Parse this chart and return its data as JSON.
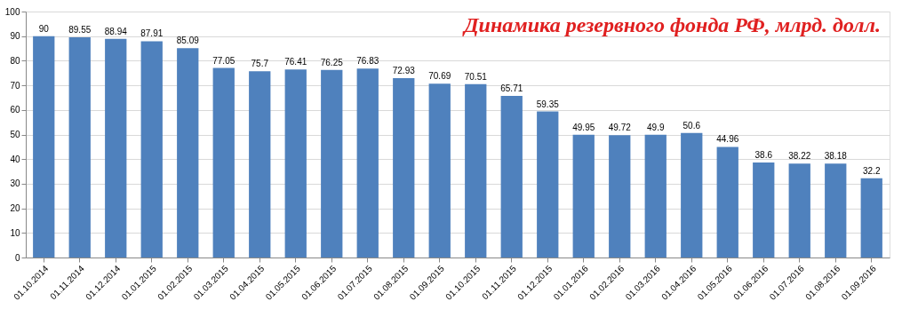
{
  "chart_data": {
    "type": "bar",
    "title": "Динамика резервного фонда РФ, млрд. долл.",
    "categories": [
      "01.10.2014",
      "01.11.2014",
      "01.12.2014",
      "01.01.2015",
      "01.02.2015",
      "01.03.2015",
      "01.04.2015",
      "01.05.2015",
      "01.06.2015",
      "01.07.2015",
      "01.08.2015",
      "01.09.2015",
      "01.10.2015",
      "01.11.2015",
      "01.12.2015",
      "01.01.2016",
      "01.02.2016",
      "01.03.2016",
      "01.04.2016",
      "01.05.2016",
      "01.06.2016",
      "01.07.2016",
      "01.08.2016",
      "01.09.2016"
    ],
    "values": [
      90,
      89.55,
      88.94,
      87.91,
      85.09,
      77.05,
      75.7,
      76.41,
      76.25,
      76.83,
      72.93,
      70.69,
      70.51,
      65.71,
      59.35,
      49.95,
      49.72,
      49.9,
      50.6,
      44.96,
      38.6,
      38.22,
      38.18,
      32.2
    ],
    "color": "#4f81bd",
    "ylim": [
      0,
      100
    ],
    "yticks": [
      0,
      10,
      20,
      30,
      40,
      50,
      60,
      70,
      80,
      90,
      100
    ],
    "grid": "y",
    "data_labels": true
  }
}
